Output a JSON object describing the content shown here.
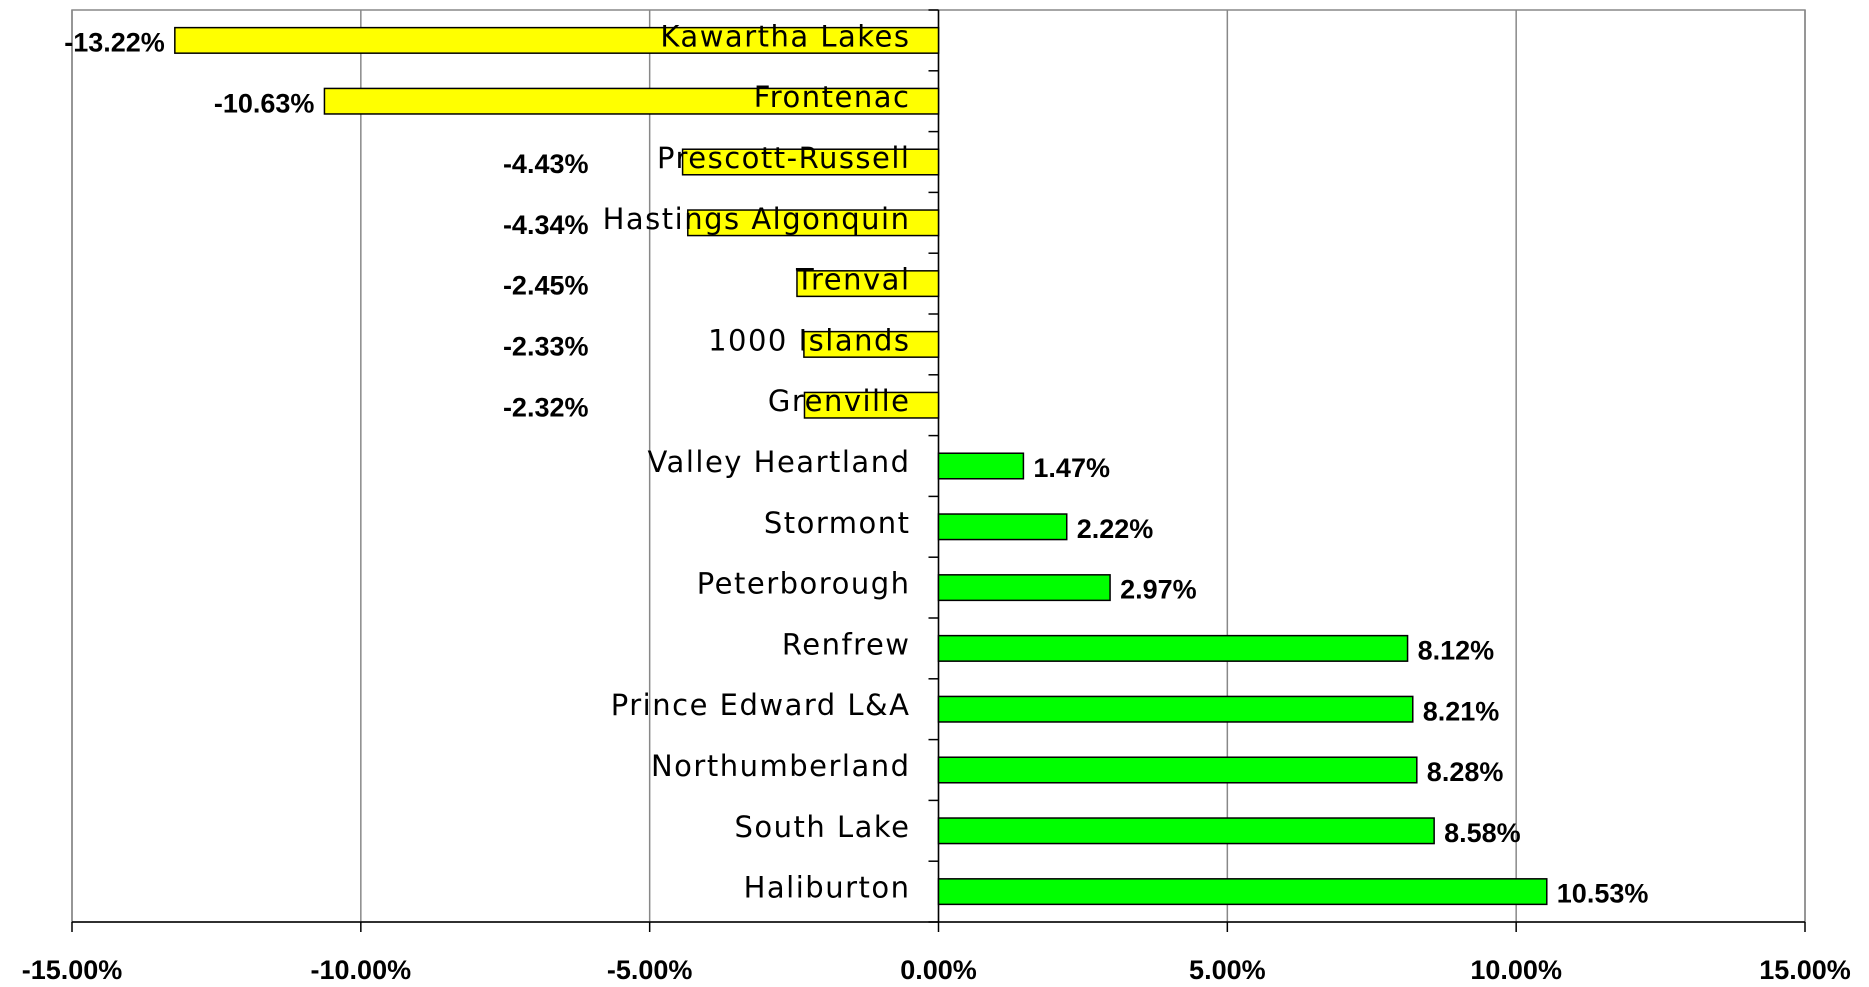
{
  "chart_data": {
    "type": "barh",
    "categories": [
      "Kawartha Lakes",
      "Frontenac",
      "Prescott-Russell",
      "Hastings Algonquin",
      "Trenval",
      "1000 Islands",
      "Grenville",
      "Valley Heartland",
      "Stormont",
      "Peterborough",
      "Renfrew",
      "Prince Edward L&A",
      "Northumberland",
      "South Lake",
      "Haliburton"
    ],
    "values": [
      -13.22,
      -10.63,
      -4.43,
      -4.34,
      -2.45,
      -2.33,
      -2.32,
      1.47,
      2.22,
      2.97,
      8.12,
      8.21,
      8.28,
      8.58,
      10.53
    ],
    "value_labels": [
      "-13.22%",
      "-10.63%",
      "-4.43%",
      "-4.34%",
      "-2.45%",
      "-2.33%",
      "-2.32%",
      "1.47%",
      "2.22%",
      "2.97%",
      "8.12%",
      "8.21%",
      "8.28%",
      "8.58%",
      "10.53%"
    ],
    "colors": [
      "#ffff00",
      "#ffff00",
      "#ffff00",
      "#ffff00",
      "#ffff00",
      "#ffff00",
      "#ffff00",
      "#00ff00",
      "#00ff00",
      "#00ff00",
      "#00ff00",
      "#00ff00",
      "#00ff00",
      "#00ff00",
      "#00ff00"
    ],
    "xlim": [
      -15,
      15
    ],
    "xticks": [
      {
        "value": -15,
        "label": "-15.00%"
      },
      {
        "value": -10,
        "label": "-10.00%"
      },
      {
        "value": -5,
        "label": "-5.00%"
      },
      {
        "value": 0,
        "label": "0.00%"
      },
      {
        "value": 5,
        "label": "5.00%"
      },
      {
        "value": 10,
        "label": "10.00%"
      },
      {
        "value": 15,
        "label": "15.00%"
      }
    ],
    "grid": true
  }
}
